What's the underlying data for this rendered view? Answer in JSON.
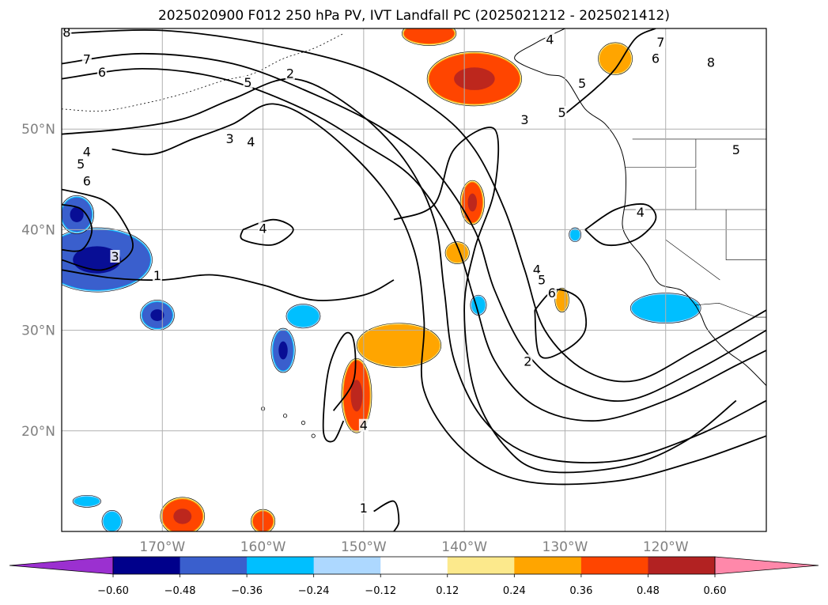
{
  "title": "2025020900 F012 250 hPa PV, IVT Landfall PC (2025021212 - 2025021412)",
  "map": {
    "lon_range": [
      -180,
      -110
    ],
    "lat_range": [
      10,
      60
    ],
    "lon_ticks": [
      {
        "value": -170,
        "label": "170°W"
      },
      {
        "value": -160,
        "label": "160°W"
      },
      {
        "value": -150,
        "label": "150°W"
      },
      {
        "value": -140,
        "label": "140°W"
      },
      {
        "value": -130,
        "label": "130°W"
      },
      {
        "value": -120,
        "label": "120°W"
      }
    ],
    "lat_ticks": [
      {
        "value": 50,
        "label": "50°N"
      },
      {
        "value": 40,
        "label": "40°N"
      },
      {
        "value": 30,
        "label": "30°N"
      },
      {
        "value": 20,
        "label": "20°N"
      }
    ],
    "grid": true,
    "contour_labels": [
      {
        "text": "8",
        "lon": -179.5,
        "lat": 59.5
      },
      {
        "text": "7",
        "lon": -177.5,
        "lat": 56.8
      },
      {
        "text": "6",
        "lon": -176,
        "lat": 55.5
      },
      {
        "text": "5",
        "lon": -161.5,
        "lat": 54.5
      },
      {
        "text": "2",
        "lon": -157.3,
        "lat": 55.4
      },
      {
        "text": "3",
        "lon": -163.3,
        "lat": 48.9
      },
      {
        "text": "4",
        "lon": -161.2,
        "lat": 48.6
      },
      {
        "text": "4",
        "lon": -177.5,
        "lat": 47.6
      },
      {
        "text": "5",
        "lon": -178.1,
        "lat": 46.4
      },
      {
        "text": "6",
        "lon": -177.5,
        "lat": 44.7
      },
      {
        "text": "4",
        "lon": -160,
        "lat": 40
      },
      {
        "text": "3",
        "lon": -174.7,
        "lat": 37.2
      },
      {
        "text": "1",
        "lon": -170.5,
        "lat": 35.3
      },
      {
        "text": "4",
        "lon": -150,
        "lat": 20.4
      },
      {
        "text": "1",
        "lon": -150,
        "lat": 12.2
      },
      {
        "text": "3",
        "lon": -134,
        "lat": 50.8
      },
      {
        "text": "5",
        "lon": -130.3,
        "lat": 51.5
      },
      {
        "text": "4",
        "lon": -131.5,
        "lat": 58.8
      },
      {
        "text": "5",
        "lon": -128.3,
        "lat": 54.4
      },
      {
        "text": "7",
        "lon": -120.5,
        "lat": 58.5
      },
      {
        "text": "6",
        "lon": -121,
        "lat": 56.9
      },
      {
        "text": "8",
        "lon": -115.5,
        "lat": 56.5
      },
      {
        "text": "5",
        "lon": -113,
        "lat": 47.8
      },
      {
        "text": "4",
        "lon": -122.5,
        "lat": 41.6
      },
      {
        "text": "4",
        "lon": -132.8,
        "lat": 35.9
      },
      {
        "text": "5",
        "lon": -132.3,
        "lat": 34.9
      },
      {
        "text": "6",
        "lon": -131.3,
        "lat": 33.6
      },
      {
        "text": "2",
        "lon": -133.7,
        "lat": 26.8
      }
    ],
    "pv_contours": [
      [
        [
          -180,
          59.5
        ],
        [
          -170,
          59.8
        ],
        [
          -160,
          58.5
        ],
        [
          -150,
          56
        ],
        [
          -143,
          52
        ],
        [
          -139,
          48
        ],
        [
          -136,
          42
        ],
        [
          -134,
          36
        ],
        [
          -132,
          30
        ],
        [
          -128,
          26
        ],
        [
          -123,
          25
        ],
        [
          -117,
          28
        ],
        [
          -110,
          32
        ]
      ],
      [
        [
          -180,
          56.5
        ],
        [
          -172,
          57.5
        ],
        [
          -163,
          56.5
        ],
        [
          -155,
          53.5
        ],
        [
          -148,
          50
        ],
        [
          -143,
          46
        ],
        [
          -139,
          40
        ],
        [
          -137,
          34
        ],
        [
          -134,
          28
        ],
        [
          -130,
          24.5
        ],
        [
          -124,
          23
        ],
        [
          -117,
          26
        ],
        [
          -110,
          30
        ]
      ],
      [
        [
          -180,
          55
        ],
        [
          -172,
          56
        ],
        [
          -164,
          55
        ],
        [
          -156,
          52
        ],
        [
          -150,
          48.5
        ],
        [
          -145,
          45
        ],
        [
          -141,
          39
        ],
        [
          -139,
          33
        ],
        [
          -137,
          27
        ],
        [
          -133,
          22.5
        ],
        [
          -127,
          21
        ],
        [
          -120,
          23
        ],
        [
          -113,
          26.5
        ],
        [
          -110,
          28
        ]
      ],
      [
        [
          -180,
          49.5
        ],
        [
          -174,
          50
        ],
        [
          -168,
          51
        ],
        [
          -163,
          53
        ],
        [
          -157,
          55
        ],
        [
          -151,
          52
        ],
        [
          -146,
          47
        ],
        [
          -143,
          41
        ],
        [
          -142,
          34
        ],
        [
          -141,
          27
        ],
        [
          -138,
          21
        ],
        [
          -133,
          17.5
        ],
        [
          -125,
          17
        ],
        [
          -117,
          19.5
        ],
        [
          -110,
          23
        ]
      ],
      [
        [
          -175,
          48
        ],
        [
          -171,
          47.5
        ],
        [
          -167,
          49
        ],
        [
          -163,
          50.5
        ],
        [
          -159,
          52.5
        ],
        [
          -154,
          50
        ],
        [
          -148,
          44
        ],
        [
          -145,
          38
        ],
        [
          -144,
          31
        ],
        [
          -144,
          24
        ],
        [
          -140,
          18
        ],
        [
          -134,
          15
        ],
        [
          -125,
          15
        ],
        [
          -117,
          17
        ],
        [
          -110,
          19.5
        ]
      ],
      [
        [
          -162,
          40
        ],
        [
          -159,
          41
        ],
        [
          -157,
          40
        ],
        [
          -159,
          38.5
        ],
        [
          -162,
          39
        ],
        [
          -162,
          40
        ]
      ],
      [
        [
          -147,
          41
        ],
        [
          -143,
          42.5
        ],
        [
          -141,
          48
        ],
        [
          -137,
          50
        ],
        [
          -137,
          44
        ],
        [
          -139,
          38
        ],
        [
          -140,
          32
        ],
        [
          -139,
          24
        ],
        [
          -136,
          18.5
        ],
        [
          -132,
          16
        ],
        [
          -124,
          16.5
        ],
        [
          -118,
          19
        ],
        [
          -113,
          23
        ]
      ],
      [
        [
          -149,
          12
        ],
        [
          -147,
          13
        ],
        [
          -146.5,
          11
        ],
        [
          -147,
          10
        ]
      ],
      [
        [
          -153,
          22
        ],
        [
          -151,
          25
        ],
        [
          -151,
          29
        ],
        [
          -152,
          29.5
        ],
        [
          -153.5,
          26
        ],
        [
          -154,
          20
        ],
        [
          -153,
          19
        ],
        [
          -152,
          21
        ]
      ],
      [
        [
          -133,
          32
        ],
        [
          -131,
          34
        ],
        [
          -128.5,
          33
        ],
        [
          -128,
          30
        ],
        [
          -130,
          28
        ],
        [
          -132.5,
          27.5
        ],
        [
          -133,
          32
        ]
      ],
      [
        [
          -130,
          51.5
        ],
        [
          -127,
          54
        ],
        [
          -125,
          56
        ],
        [
          -123,
          59
        ],
        [
          -121,
          60
        ]
      ],
      [
        [
          -128,
          40
        ],
        [
          -125,
          42
        ],
        [
          -122,
          42.5
        ],
        [
          -121,
          41
        ],
        [
          -123,
          39
        ],
        [
          -126,
          38.5
        ],
        [
          -128,
          40
        ]
      ],
      [
        [
          -180,
          44
        ],
        [
          -176,
          43
        ],
        [
          -174,
          41
        ],
        [
          -173,
          38
        ],
        [
          -176,
          36
        ],
        [
          -180,
          37
        ]
      ],
      [
        [
          -180,
          42.5
        ],
        [
          -178,
          42
        ],
        [
          -177,
          40
        ],
        [
          -178,
          38
        ],
        [
          -180,
          38
        ]
      ],
      [
        [
          -180,
          36
        ],
        [
          -175,
          35.2
        ],
        [
          -170,
          35
        ],
        [
          -165,
          35.5
        ],
        [
          -160,
          34.5
        ],
        [
          -155,
          33
        ],
        [
          -150,
          33.5
        ],
        [
          -147,
          35
        ]
      ]
    ],
    "ivt_regions": [
      {
        "value": 0.4,
        "lon": -139,
        "lat": 55,
        "rx": 4.5,
        "ry": 2.5
      },
      {
        "value": 0.36,
        "lon": -143.5,
        "lat": 59.5,
        "rx": 2.5,
        "ry": 1
      },
      {
        "value": 0.3,
        "lon": -125,
        "lat": 57,
        "rx": 1.5,
        "ry": 1.4
      },
      {
        "value": 0.38,
        "lon": -139.2,
        "lat": 42.7,
        "rx": 1,
        "ry": 2
      },
      {
        "value": 0.3,
        "lon": -140.7,
        "lat": 37.7,
        "rx": 1,
        "ry": 0.9
      },
      {
        "value": 0.33,
        "lon": -146.5,
        "lat": 28.5,
        "rx": 4,
        "ry": 2
      },
      {
        "value": 0.38,
        "lon": -150.7,
        "lat": 23.5,
        "rx": 1.3,
        "ry": 3.5
      },
      {
        "value": 0.45,
        "lon": -168,
        "lat": 11.5,
        "rx": 2,
        "ry": 1.7
      },
      {
        "value": 0.36,
        "lon": -160,
        "lat": 11,
        "rx": 1,
        "ry": 1
      },
      {
        "value": 0.3,
        "lon": -130.3,
        "lat": 33,
        "rx": 0.5,
        "ry": 1
      },
      {
        "value": -0.4,
        "lon": -176.5,
        "lat": 37,
        "rx": 5.3,
        "ry": 3
      },
      {
        "value": -0.4,
        "lon": -178.5,
        "lat": 41.5,
        "rx": 1.5,
        "ry": 1.7
      },
      {
        "value": -0.45,
        "lon": -170.5,
        "lat": 31.5,
        "rx": 1.5,
        "ry": 1.3
      },
      {
        "value": -0.4,
        "lon": -158,
        "lat": 28,
        "rx": 1,
        "ry": 2
      },
      {
        "value": -0.35,
        "lon": -156,
        "lat": 31.4,
        "rx": 1.5,
        "ry": 1
      },
      {
        "value": -0.35,
        "lon": -120,
        "lat": 32.2,
        "rx": 3.3,
        "ry": 1.3
      },
      {
        "value": -0.3,
        "lon": -138.6,
        "lat": 32.5,
        "rx": 0.6,
        "ry": 0.8
      },
      {
        "value": -0.3,
        "lon": -177.5,
        "lat": 13,
        "rx": 1.2,
        "ry": 0.4
      },
      {
        "value": -0.35,
        "lon": -175,
        "lat": 11,
        "rx": 0.8,
        "ry": 0.9
      },
      {
        "value": -0.3,
        "lon": -129,
        "lat": 39.5,
        "rx": 0.4,
        "ry": 0.5
      }
    ]
  },
  "colorbar": {
    "ticks": [
      "−0.60",
      "−0.48",
      "−0.36",
      "−0.24",
      "−0.12",
      "0.12",
      "0.24",
      "0.36",
      "0.48",
      "0.60"
    ],
    "colors": {
      "under": "#9b30d0",
      "bins": [
        "#9b30d0",
        "#00008b",
        "#3a5fcd",
        "#00bfff",
        "#add8ff",
        "#ffffff",
        "#fce98c",
        "#ffa500",
        "#ff4500",
        "#b22222",
        "#ff88aa"
      ],
      "over": "#ff88aa"
    }
  }
}
